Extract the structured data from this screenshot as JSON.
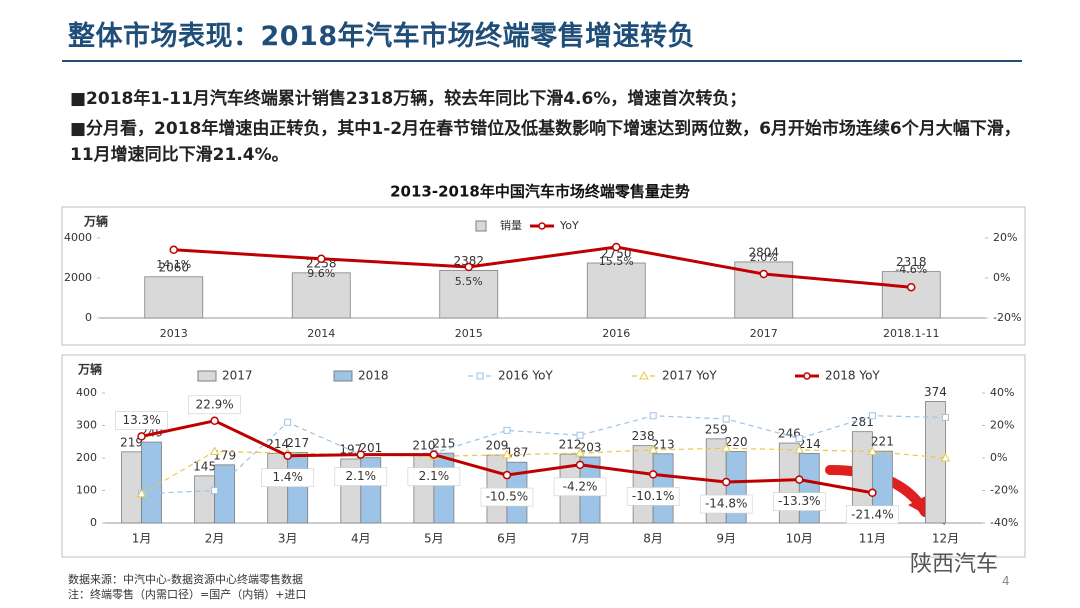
{
  "title": "整体市场表现：2018年汽车市场终端零售增速转负",
  "bullets": [
    "■2018年1-11月汽车终端累计销售2318万辆，较去年同比下滑4.6%，增速首次转负；",
    "■分月看，2018年增速由正转负，其中1-2月在春节错位及低基数影响下增速达到两位数，6月开始市场连续6个月大幅下滑，11月增速同比下滑21.4%。"
  ],
  "chart_data": [
    {
      "type": "bar",
      "title": "2013-2018年中国汽车市场终端零售量走势",
      "y_label": "万辆",
      "categories": [
        "2013",
        "2014",
        "2015",
        "2016",
        "2017",
        "2018.1-11"
      ],
      "series": [
        {
          "name": "销量",
          "type": "bar",
          "color": "#d9d9d9",
          "values": [
            2060,
            2258,
            2382,
            2750,
            2804,
            2318
          ]
        },
        {
          "name": "YoY",
          "type": "line",
          "axis": "y2",
          "color": "#c00000",
          "marker": "circle",
          "dashed": false,
          "values": [
            14.1,
            9.6,
            5.5,
            15.5,
            2.0,
            -4.6
          ],
          "value_labels": [
            "14.1%",
            "9.6%",
            "5.5%",
            "15.5%",
            "2.0%",
            "-4.6%"
          ]
        }
      ],
      "ylim": [
        0,
        4000
      ],
      "yticks": [
        0,
        2000,
        4000
      ],
      "y2lim": [
        -20,
        20
      ],
      "y2ticks": [
        {
          "value": -20,
          "label": "-20%"
        },
        {
          "value": 0,
          "label": "0%"
        },
        {
          "value": 20,
          "label": "20%"
        }
      ],
      "legend": "top"
    },
    {
      "type": "bar",
      "y_label": "万辆",
      "categories": [
        "1月",
        "2月",
        "3月",
        "4月",
        "5月",
        "6月",
        "7月",
        "8月",
        "9月",
        "10月",
        "11月",
        "12月"
      ],
      "series": [
        {
          "name": "2017",
          "type": "bar",
          "color": "#d9d9d9",
          "values": [
            219,
            145,
            214,
            197,
            210,
            209,
            212,
            238,
            259,
            246,
            281,
            374
          ]
        },
        {
          "name": "2018",
          "type": "bar",
          "color": "#9dc3e6",
          "values": [
            249,
            179,
            217,
            201,
            215,
            187,
            203,
            213,
            220,
            214,
            221,
            null
          ]
        },
        {
          "name": "2016 YoY",
          "type": "line",
          "axis": "y2",
          "color": "#9dc3e6",
          "marker": "square",
          "dashed": true,
          "values": [
            -22,
            -20,
            22,
            2,
            3,
            17,
            14,
            26,
            24,
            12,
            26,
            25
          ]
        },
        {
          "name": "2017 YoY",
          "type": "line",
          "axis": "y2",
          "color": "#e6c84a",
          "marker": "triangle",
          "dashed": true,
          "values": [
            -22,
            4,
            3,
            2,
            1,
            2,
            3,
            5,
            6,
            5,
            4,
            0
          ]
        },
        {
          "name": "2018 YoY",
          "type": "line",
          "axis": "y2",
          "color": "#c00000",
          "marker": "circle",
          "dashed": false,
          "values": [
            13.3,
            22.9,
            1.4,
            2.1,
            2.1,
            -10.5,
            -4.2,
            -10.1,
            -14.8,
            -13.3,
            -21.4,
            null
          ],
          "value_labels": [
            "13.3%",
            "22.9%",
            "1.4%",
            "2.1%",
            "2.1%",
            "-10.5%",
            "-4.2%",
            "-10.1%",
            "-14.8%",
            "-13.3%",
            "-21.4%",
            null
          ]
        }
      ],
      "ylim": [
        0,
        400
      ],
      "yticks": [
        0,
        100,
        200,
        300,
        400
      ],
      "y2lim": [
        -40,
        40
      ],
      "y2ticks": [
        {
          "value": -40,
          "label": "-40%"
        },
        {
          "value": -20,
          "label": "-20%"
        },
        {
          "value": 0,
          "label": "0%"
        },
        {
          "value": 20,
          "label": "20%"
        },
        {
          "value": 40,
          "label": "40%"
        }
      ],
      "legend": "top"
    }
  ],
  "notes": [
    "数据来源：中汽中心-数据资源中心终端零售数据",
    "注：终端零售（内需口径）=国产（内销）+进口"
  ],
  "watermark": "陕西汽车",
  "page_number": "4"
}
